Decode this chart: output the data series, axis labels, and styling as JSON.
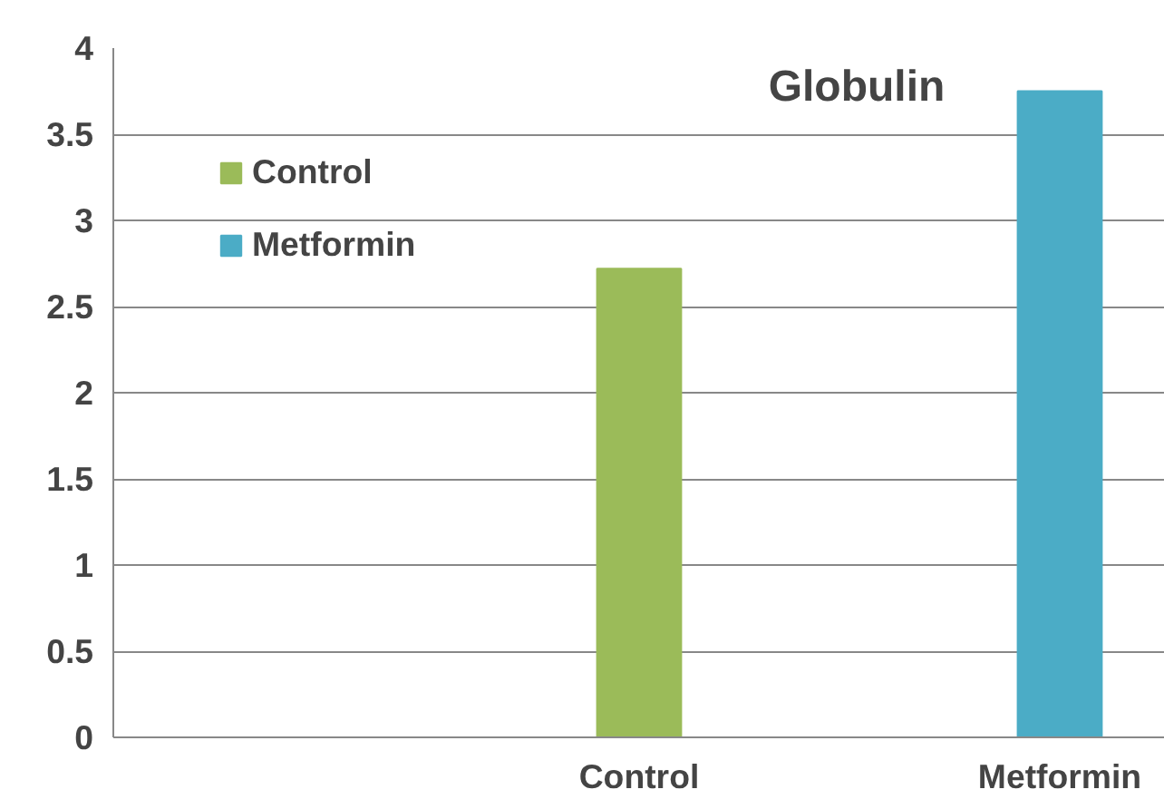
{
  "chart_data": {
    "type": "bar",
    "title": "Globulin",
    "categories": [
      null,
      null,
      "Control",
      null,
      "Metformin"
    ],
    "series": [
      {
        "name": "Control",
        "color": "#9bbb59",
        "values": [
          null,
          null,
          2.72,
          null,
          null
        ]
      },
      {
        "name": "Metformin",
        "color": "#4bacc6",
        "values": [
          null,
          null,
          null,
          null,
          3.75
        ]
      }
    ],
    "ylim": [
      0,
      4
    ],
    "yticks": [
      0,
      0.5,
      1,
      1.5,
      2,
      2.5,
      3,
      3.5,
      4
    ],
    "grid": "y",
    "legend": "top left"
  }
}
